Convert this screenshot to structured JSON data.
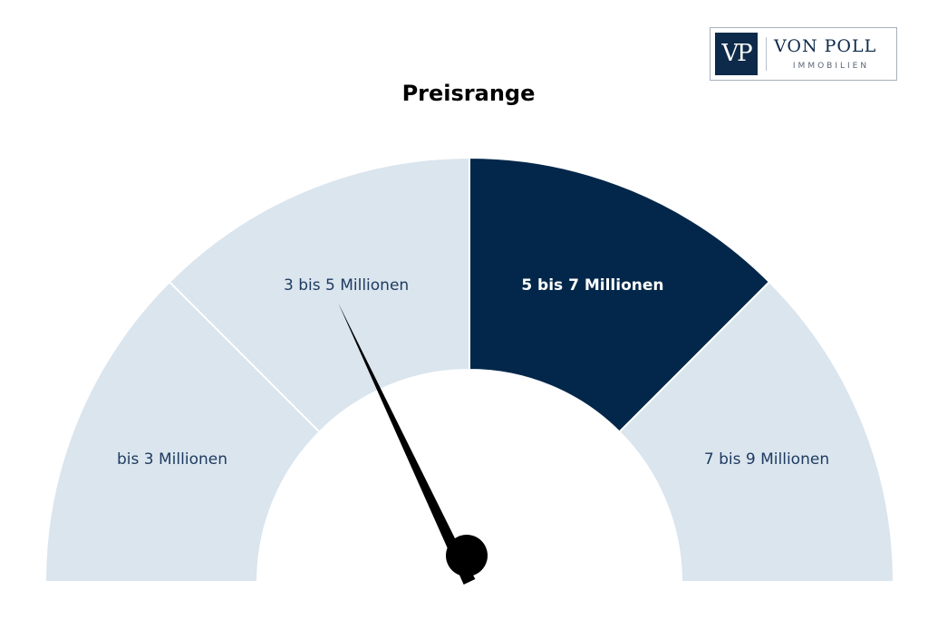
{
  "logo": {
    "mark": "VP",
    "name": "VON POLL",
    "sub": "IMMOBILIEN"
  },
  "chart_data": {
    "type": "gauge",
    "title": "Preisrange",
    "segments": [
      {
        "label": "bis 3 Millionen",
        "active": false
      },
      {
        "label": "3 bis 5 Millionen",
        "active": false
      },
      {
        "label": "5 bis 7 Millionen",
        "active": true
      },
      {
        "label": "7 bis 9 Millionen",
        "active": false
      }
    ],
    "needle_value": 0.36,
    "colors": {
      "inactive": "#dae5ee",
      "active": "#03274a",
      "inactive_text": "#1e3a5f",
      "active_text": "#ffffff",
      "needle": "#000000"
    }
  }
}
